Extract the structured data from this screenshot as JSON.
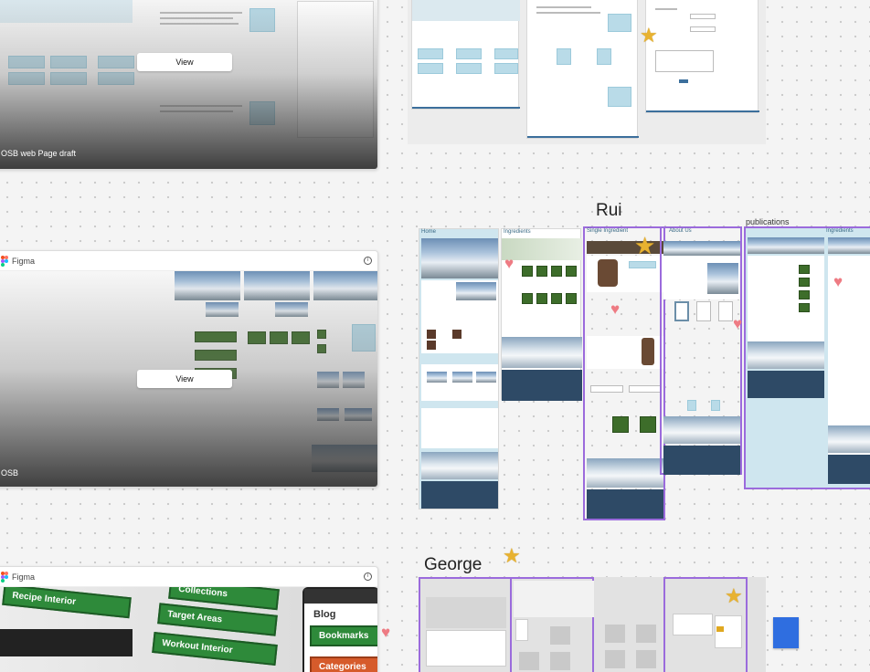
{
  "cards": [
    {
      "title": "OSB web Page draft",
      "view_label": "View"
    },
    {
      "header": "Figma",
      "title": "OSB",
      "view_label": "View"
    },
    {
      "header": "Figma"
    }
  ],
  "mini_diagram": {
    "boxes": [
      "Recipe Interior",
      "Target Areas",
      "Workout Interior",
      "Bookmarks",
      "Categories",
      "Blog",
      "Collections"
    ]
  },
  "sections": {
    "rui": "Rui",
    "george": "George",
    "publications": "publications"
  },
  "frame_titles": {
    "home": "Home",
    "ingredients": "Ingredients",
    "single_ingredient": "Single Ingredient",
    "about_us": "About Us",
    "ingredients2": "Ingredients"
  },
  "colors": {
    "selection": "#9b6bdc",
    "heart": "#ee7b83",
    "star": "#e8b230",
    "footer": "#2e4a66",
    "light_blue": "#b9dbe8"
  },
  "icons": [
    "figma-icon",
    "info-icon",
    "heart-icon",
    "star-icon"
  ]
}
